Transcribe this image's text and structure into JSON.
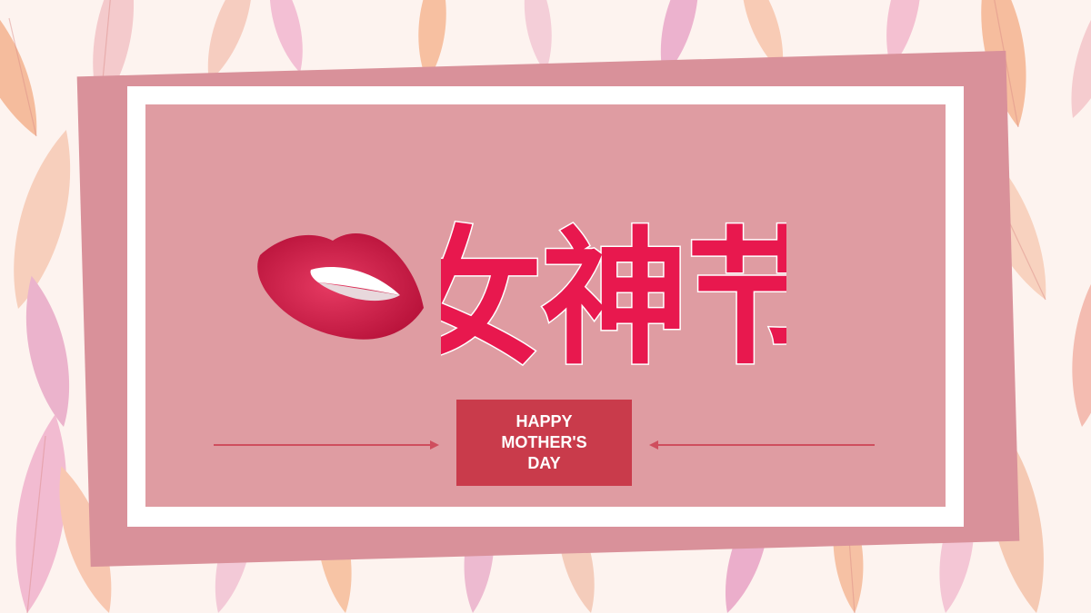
{
  "title": {
    "text": "女神节"
  },
  "badge": {
    "line1": "HAPPY",
    "line2": "MOTHER'S",
    "line3": "DAY"
  },
  "colors": {
    "tilted_panel": "#d9919a",
    "inner_panel": "#df9ca2",
    "frame": "#ffffff",
    "title": "#e8184e",
    "title_outline": "#ffffff",
    "badge": "#c93b4b",
    "arrows": "#cf4e5e",
    "lips": "#d41d45"
  },
  "icons": {
    "lips": "lips-illustration",
    "background": "watercolor-petals-pattern"
  }
}
